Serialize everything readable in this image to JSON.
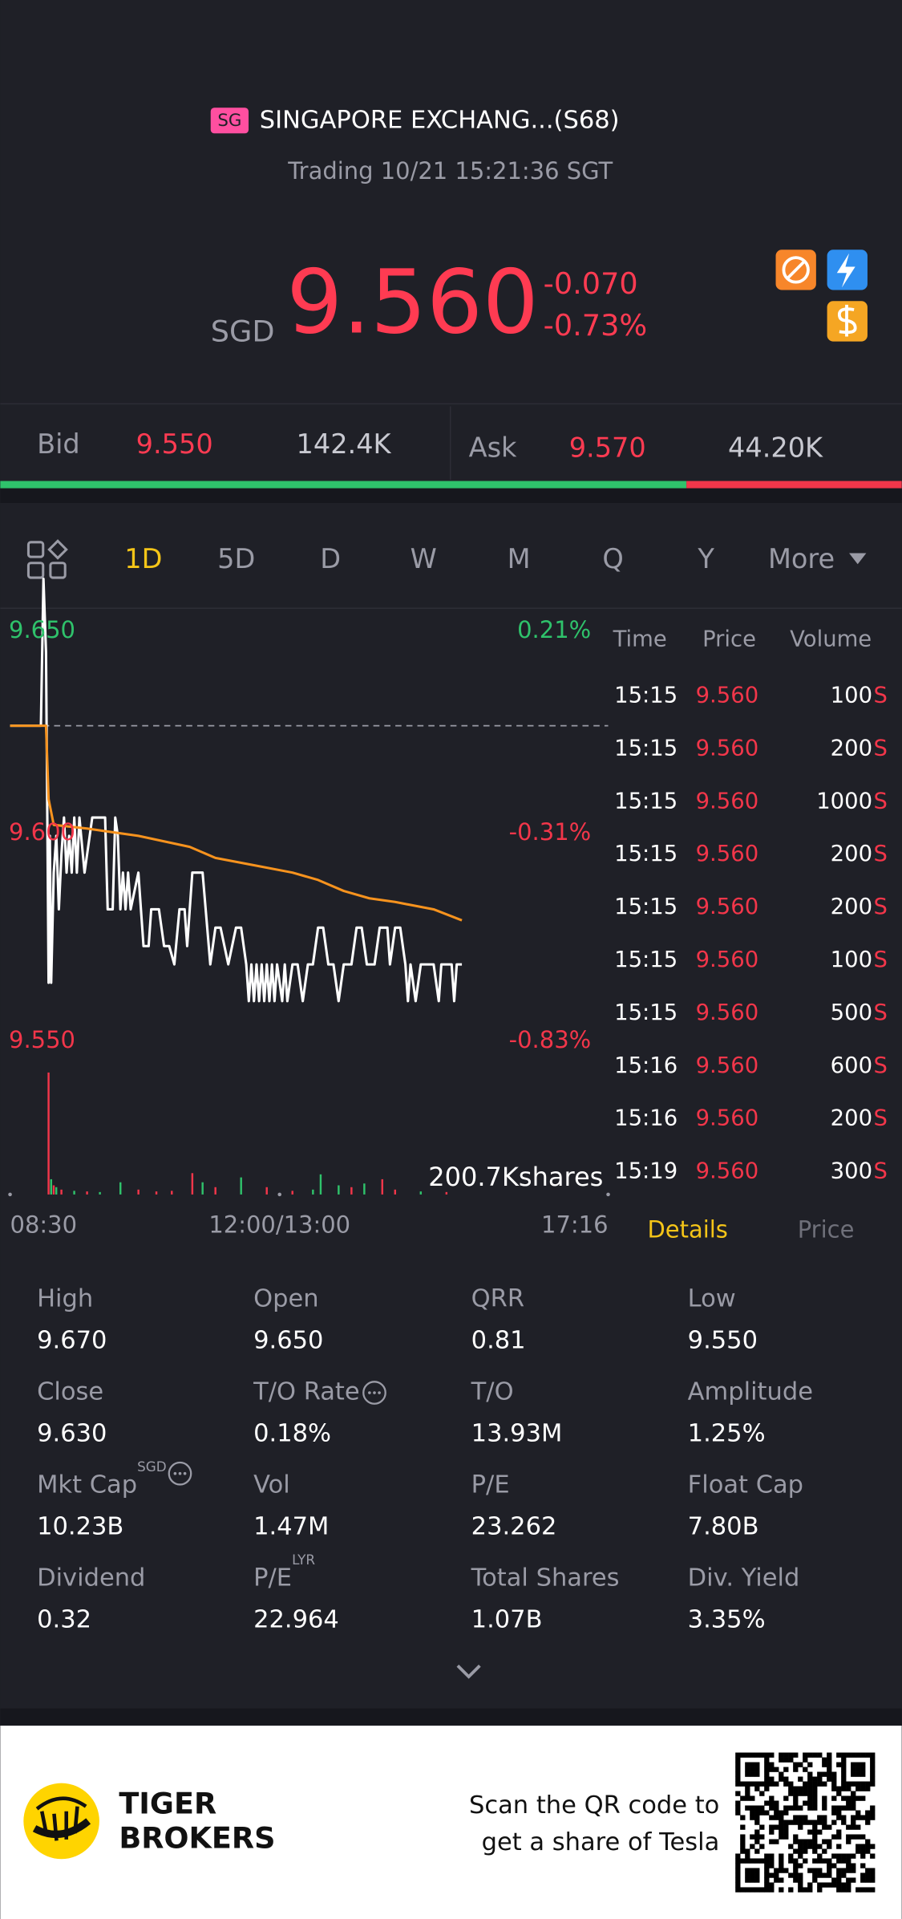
{
  "header": {
    "badge": "SG",
    "title": "SINGAPORE EXCHANG...(S68)",
    "status": "Trading 10/21 15:21:36 SGT",
    "currency": "SGD",
    "price": "9.560",
    "change": "-0.070",
    "change_pct": "-0.73%"
  },
  "quote_bar": {
    "bid_label": "Bid",
    "bid": "9.550",
    "bid_size": "142.4K",
    "ask_label": "Ask",
    "ask": "9.570",
    "ask_size": "44.20K"
  },
  "tabs": [
    "1D",
    "5D",
    "D",
    "W",
    "M",
    "Q",
    "Y",
    "More"
  ],
  "chart_data": {
    "type": "line",
    "ylim": [
      9.55,
      9.65
    ],
    "yticks": [
      {
        "value": 9.65,
        "label": "9.650"
      },
      {
        "value": 9.6,
        "label": "9.600"
      },
      {
        "value": 9.55,
        "label": "9.550"
      }
    ],
    "y2lim": [
      -0.83,
      0.21
    ],
    "y2ticks": [
      {
        "value": 0.21,
        "label": "0.21%"
      },
      {
        "value": -0.31,
        "label": "-0.31%"
      },
      {
        "value": -0.83,
        "label": "-0.83%"
      }
    ],
    "reference_line": 9.63,
    "xlim": [
      0,
      466
    ],
    "xticks": [
      {
        "value": 0,
        "label": "08:30"
      },
      {
        "value": 210,
        "label": "12:00/13:00"
      },
      {
        "value": 466,
        "label": "17:16"
      }
    ],
    "series": [
      {
        "color": "#ffffff",
        "x": [
          0,
          24,
          26,
          28,
          30,
          31,
          32,
          34,
          36,
          38,
          40,
          42,
          44,
          46,
          48,
          50,
          52,
          54,
          58,
          62,
          64,
          70,
          74,
          76,
          80,
          82,
          84,
          86,
          88,
          90,
          92,
          94,
          100,
          104,
          108,
          110,
          116,
          120,
          124,
          128,
          132,
          136,
          138,
          142,
          150,
          156,
          160,
          164,
          170,
          176,
          180,
          184,
          186,
          188,
          190,
          192,
          194,
          196,
          198,
          200,
          202,
          204,
          206,
          208,
          212,
          214,
          216,
          220,
          224,
          228,
          232,
          236,
          240,
          244,
          248,
          252,
          256,
          260,
          266,
          270,
          274,
          278,
          284,
          288,
          294,
          296,
          300,
          304,
          308,
          310,
          312,
          316,
          320,
          330,
          334,
          336,
          344,
          346,
          348,
          352
        ],
        "values": [
          9.63,
          9.63,
          9.67,
          9.65,
          9.56,
          9.6,
          9.56,
          9.59,
          9.6,
          9.58,
          9.595,
          9.605,
          9.59,
          9.6,
          9.59,
          9.605,
          9.59,
          9.605,
          9.59,
          9.6,
          9.605,
          9.605,
          9.605,
          9.58,
          9.58,
          9.605,
          9.6,
          9.58,
          9.59,
          9.58,
          9.59,
          9.58,
          9.59,
          9.57,
          9.57,
          9.58,
          9.58,
          9.57,
          9.57,
          9.565,
          9.58,
          9.58,
          9.57,
          9.59,
          9.59,
          9.565,
          9.575,
          9.575,
          9.565,
          9.575,
          9.575,
          9.565,
          9.555,
          9.565,
          9.555,
          9.565,
          9.555,
          9.565,
          9.555,
          9.565,
          9.555,
          9.565,
          9.555,
          9.565,
          9.555,
          9.565,
          9.555,
          9.565,
          9.565,
          9.555,
          9.565,
          9.565,
          9.575,
          9.575,
          9.565,
          9.565,
          9.555,
          9.565,
          9.565,
          9.575,
          9.575,
          9.565,
          9.565,
          9.575,
          9.575,
          9.565,
          9.575,
          9.575,
          9.565,
          9.555,
          9.565,
          9.555,
          9.565,
          9.565,
          9.555,
          9.565,
          9.565,
          9.555,
          9.565,
          9.565
        ]
      },
      {
        "color": "#f7931e",
        "x": [
          0,
          28,
          30,
          34,
          60,
          100,
          140,
          160,
          190,
          220,
          240,
          260,
          280,
          300,
          330,
          352
        ],
        "values": [
          9.63,
          9.63,
          9.61,
          9.603,
          9.602,
          9.6,
          9.597,
          9.594,
          9.592,
          9.59,
          9.588,
          9.585,
          9.583,
          9.582,
          9.58,
          9.577
        ]
      }
    ],
    "volume": {
      "label": "200.7Kshares",
      "ylim": [
        0,
        200700
      ],
      "x": [
        30,
        32,
        34,
        36,
        40,
        50,
        60,
        70,
        86,
        100,
        114,
        126,
        142,
        150,
        160,
        180,
        200,
        220,
        236,
        242,
        256,
        266,
        276,
        290,
        300,
        320,
        340
      ],
      "values": [
        200000,
        25000,
        15000,
        12000,
        8000,
        6000,
        5000,
        4000,
        20000,
        8000,
        5000,
        6000,
        35000,
        20000,
        12000,
        28000,
        12000,
        6000,
        8000,
        33000,
        15000,
        12000,
        18000,
        25000,
        8000,
        5000,
        4000
      ],
      "colors": [
        "#f2364a",
        "#2fc26b",
        "#f2364a",
        "#2fc26b",
        "#f2364a",
        "#2fc26b",
        "#f2364a",
        "#2fc26b",
        "#2fc26b",
        "#f2364a",
        "#f2364a",
        "#f2364a",
        "#f2364a",
        "#2fc26b",
        "#f2364a",
        "#2fc26b",
        "#f2364a",
        "#f2364a",
        "#2fc26b",
        "#2fc26b",
        "#2fc26b",
        "#f2364a",
        "#2fc26b",
        "#f2364a",
        "#f2364a",
        "#2fc26b",
        "#f2364a"
      ]
    }
  },
  "trades": {
    "headers": [
      "Time",
      "Price",
      "Volume"
    ],
    "side": "S",
    "rows": [
      [
        "15:15",
        "9.560",
        100
      ],
      [
        "15:15",
        "9.560",
        200
      ],
      [
        "15:15",
        "9.560",
        1000
      ],
      [
        "15:15",
        "9.560",
        200
      ],
      [
        "15:15",
        "9.560",
        200
      ],
      [
        "15:15",
        "9.560",
        100
      ],
      [
        "15:15",
        "9.560",
        500
      ],
      [
        "15:16",
        "9.560",
        600
      ],
      [
        "15:16",
        "9.560",
        200
      ],
      [
        "15:19",
        "9.560",
        300
      ]
    ],
    "tabs": [
      "Details",
      "Price"
    ]
  },
  "details": [
    {
      "label": "High",
      "value": "9.670"
    },
    {
      "label": "Open",
      "value": "9.650"
    },
    {
      "label": "QRR",
      "value": "0.81"
    },
    {
      "label": "Low",
      "value": "9.550"
    },
    {
      "label": "Close",
      "value": "9.630"
    },
    {
      "label": "T/O Rate",
      "value": "0.18%"
    },
    {
      "label": "T/O",
      "value": "13.93M"
    },
    {
      "label": "Amplitude",
      "value": "1.25%"
    },
    {
      "label": "Mkt Cap",
      "sup": "SGD",
      "value": "10.23B"
    },
    {
      "label": "Vol",
      "value": "1.47M"
    },
    {
      "label": "P/E",
      "value": "23.262"
    },
    {
      "label": "Float Cap",
      "value": "7.80B"
    },
    {
      "label": "Dividend",
      "value": "0.32"
    },
    {
      "label": "P/E",
      "sup": "LYR",
      "value": "22.964"
    },
    {
      "label": "Total Shares",
      "value": "1.07B"
    },
    {
      "label": "Div. Yield",
      "value": "3.35%"
    }
  ],
  "footer": {
    "brand_line1": "TIGER",
    "brand_line2": "BROKERS",
    "promo_line1": "Scan the QR code to",
    "promo_line2": "get a share of Tesla"
  }
}
